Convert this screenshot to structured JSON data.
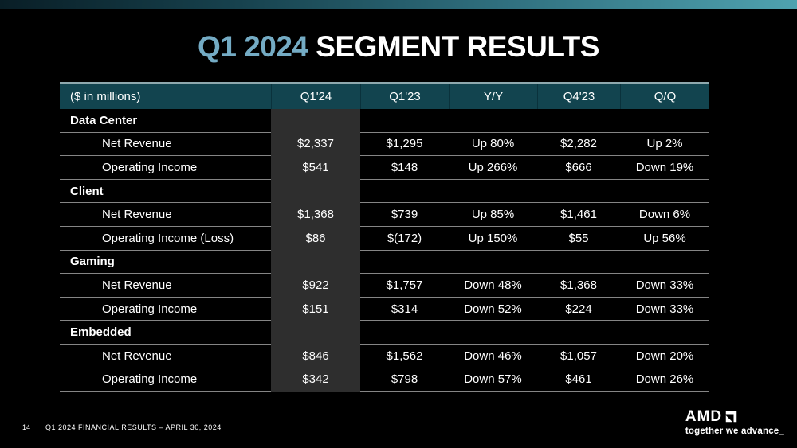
{
  "slide": {
    "title": {
      "highlight": "Q1 2024",
      "rest": " SEGMENT RESULTS"
    },
    "footer": {
      "page_number": "14",
      "text": "Q1 2024 FINANCIAL RESULTS – APRIL 30, 2024"
    },
    "logo": {
      "brand": "AMD",
      "tagline": "together we advance_"
    }
  },
  "table": {
    "unit_label": "($ in millions)",
    "columns": [
      "Q1'24",
      "Q1'23",
      "Y/Y",
      "Q4'23",
      "Q/Q"
    ],
    "highlight_column": "Q1'24",
    "sections": [
      {
        "name": "Data Center",
        "rows": [
          {
            "label": "Net Revenue",
            "values": [
              "$2,337",
              "$1,295",
              "Up 80%",
              "$2,282",
              "Up 2%"
            ]
          },
          {
            "label": "Operating Income",
            "values": [
              "$541",
              "$148",
              "Up 266%",
              "$666",
              "Down 19%"
            ]
          }
        ]
      },
      {
        "name": "Client",
        "rows": [
          {
            "label": "Net Revenue",
            "values": [
              "$1,368",
              "$739",
              "Up 85%",
              "$1,461",
              "Down 6%"
            ]
          },
          {
            "label": "Operating Income (Loss)",
            "values": [
              "$86",
              "$(172)",
              "Up 150%",
              "$55",
              "Up 56%"
            ]
          }
        ]
      },
      {
        "name": "Gaming",
        "rows": [
          {
            "label": "Net Revenue",
            "values": [
              "$922",
              "$1,757",
              "Down 48%",
              "$1,368",
              "Down 33%"
            ]
          },
          {
            "label": "Operating Income",
            "values": [
              "$151",
              "$314",
              "Down 52%",
              "$224",
              "Down 33%"
            ]
          }
        ]
      },
      {
        "name": "Embedded",
        "rows": [
          {
            "label": "Net Revenue",
            "values": [
              "$846",
              "$1,562",
              "Down 46%",
              "$1,057",
              "Down 20%"
            ]
          },
          {
            "label": "Operating Income",
            "values": [
              "$342",
              "$798",
              "Down 57%",
              "$461",
              "Down 26%"
            ]
          }
        ]
      }
    ]
  },
  "colors": {
    "background": "#000000",
    "title_accent": "#74abc4",
    "table_header_bg": "#12444f",
    "highlight_band": "#2e2e2e",
    "row_divider": "#858585",
    "top_bar_gradient_start": "#091e26",
    "top_bar_gradient_end": "#4fa2af"
  }
}
